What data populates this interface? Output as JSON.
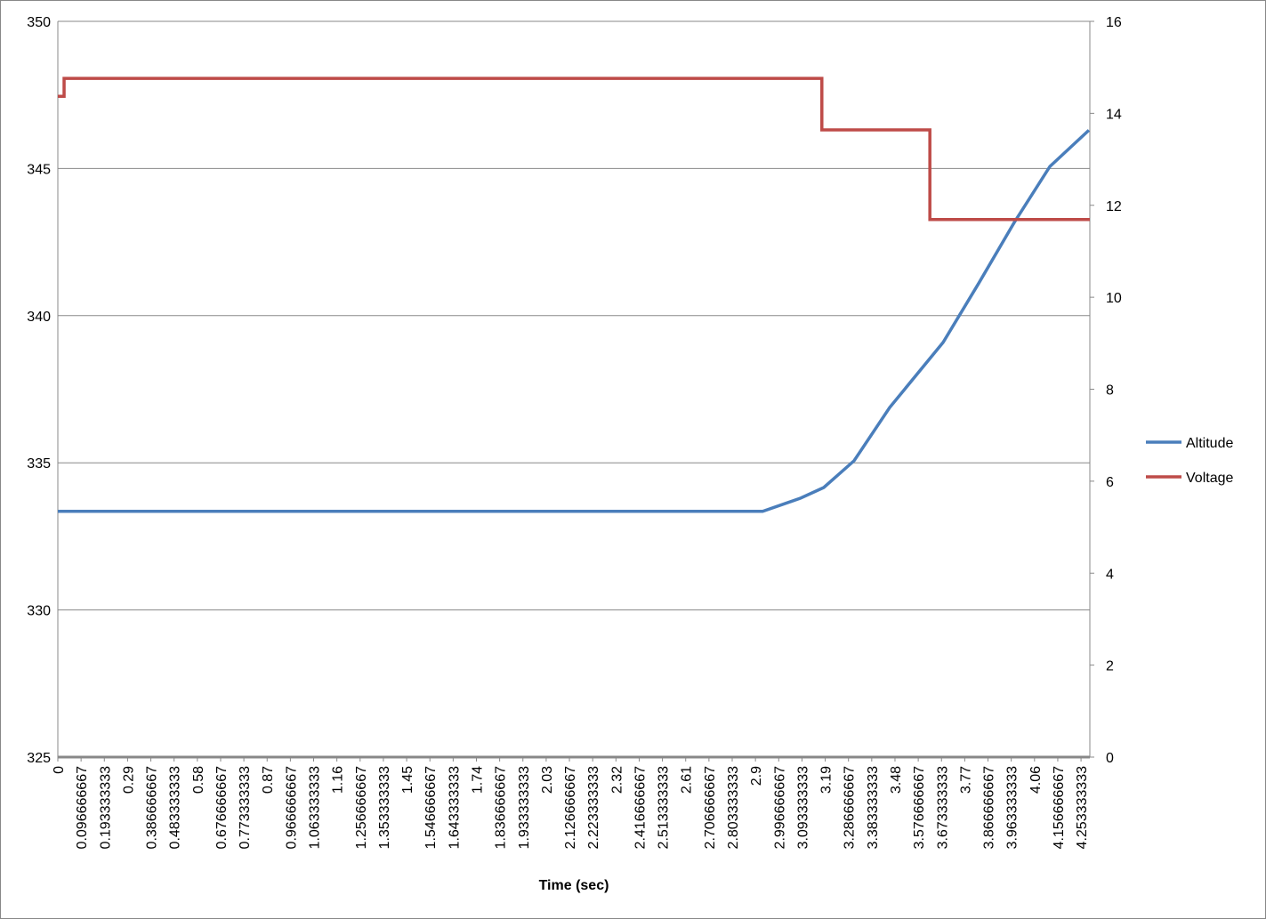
{
  "chart_data": {
    "type": "line",
    "x_label": "Time (sec)",
    "xlim": [
      0,
      4.29
    ],
    "xticks": [
      0,
      0.096666667,
      0.193333333,
      0.29,
      0.386666667,
      0.483333333,
      0.58,
      0.676666667,
      0.773333333,
      0.87,
      0.966666667,
      1.063333333,
      1.16,
      1.256666667,
      1.353333333,
      1.45,
      1.546666667,
      1.643333333,
      1.74,
      1.836666667,
      1.933333333,
      2.03,
      2.126666667,
      2.223333333,
      2.32,
      2.416666667,
      2.513333333,
      2.61,
      2.706666667,
      2.803333333,
      2.9,
      2.996666667,
      3.093333333,
      3.19,
      3.286666667,
      3.383333333,
      3.48,
      3.576666667,
      3.673333333,
      3.77,
      3.866666667,
      3.963333333,
      4.06,
      4.156666667,
      4.253333333
    ],
    "ylim": [
      325,
      350
    ],
    "yticks": [
      325,
      330,
      335,
      340,
      345,
      350
    ],
    "y2lim": [
      0,
      16
    ],
    "y2ticks": [
      0,
      2,
      4,
      6,
      8,
      10,
      12,
      14,
      16
    ],
    "grid": true,
    "legend": "right",
    "series": [
      {
        "name": "Altitude",
        "color": "#4a7ebb",
        "x": [
          0,
          2.93,
          3.088,
          3.184,
          3.31,
          3.458,
          3.68,
          3.828,
          3.976,
          4.124,
          4.286
        ],
        "values": [
          333.35,
          333.35,
          333.8,
          334.16,
          335.07,
          336.88,
          339.09,
          341.1,
          343.17,
          345.07,
          346.3
        ]
      },
      {
        "name": "Voltage",
        "color": "#be4b48",
        "axis": "y2",
        "x": [
          0,
          0.026,
          0.026,
          3.176,
          3.176,
          3.625,
          3.625,
          4.29
        ],
        "values": [
          14.37,
          14.37,
          14.76,
          14.76,
          13.64,
          13.64,
          11.69,
          11.69
        ]
      }
    ]
  }
}
